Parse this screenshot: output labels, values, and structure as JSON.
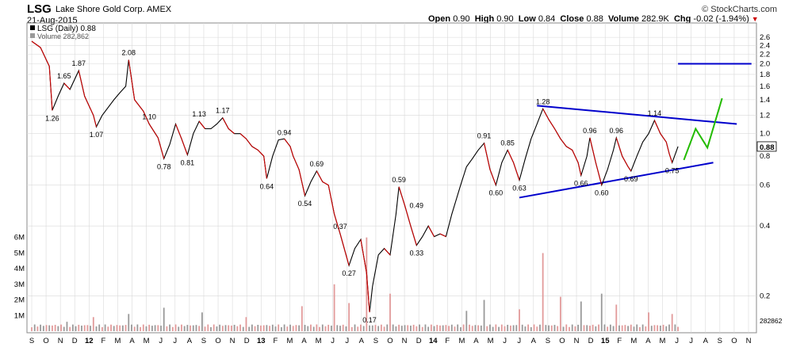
{
  "header": {
    "ticker": "LSG",
    "company": "Lake Shore Gold Corp.",
    "exchange": "AMEX",
    "date": "21-Aug-2015",
    "brand": "© StockCharts.com",
    "open_label": "Open",
    "open": "0.90",
    "high_label": "High",
    "high": "0.90",
    "low_label": "Low",
    "low": "0.84",
    "close_label": "Close",
    "close": "0.88",
    "volume_label": "Volume",
    "volume": "282.9K",
    "chg_label": "Chg",
    "chg": "-0.02 (-1.94%)"
  },
  "legend": {
    "price": "LSG (Daily) 0.88",
    "volume": "Volume 282,862"
  },
  "chart_data": {
    "type": "line",
    "y_scale": "log",
    "y_ticks": [
      2.6,
      2.4,
      2.2,
      2.0,
      1.8,
      1.6,
      1.4,
      1.2,
      1.0,
      0.8,
      0.6,
      0.4,
      0.2
    ],
    "y_tick_labels": [
      "2.6",
      "2.4",
      "2.2",
      "2.0",
      "1.8",
      "1.6",
      "1.4",
      "1.2",
      "1.0",
      "0.8",
      "0.6",
      "0.4",
      "0.2"
    ],
    "last_price": "0.88",
    "volume_ticks": [
      "6M",
      "5M",
      "4M",
      "3M",
      "2M",
      "1M"
    ],
    "volume_ticks_values": [
      6,
      5,
      4,
      3,
      2,
      1
    ],
    "volume_last": "282862",
    "x_labels": [
      "S",
      "O",
      "N",
      "D",
      "12",
      "F",
      "M",
      "A",
      "M",
      "J",
      "J",
      "A",
      "S",
      "O",
      "N",
      "D",
      "13",
      "F",
      "M",
      "A",
      "M",
      "J",
      "J",
      "A",
      "S",
      "O",
      "N",
      "D",
      "14",
      "F",
      "M",
      "A",
      "M",
      "J",
      "J",
      "A",
      "S",
      "O",
      "N",
      "D",
      "15",
      "F",
      "M",
      "A",
      "M",
      "J",
      "J",
      "A",
      "S",
      "O",
      "N"
    ],
    "price_points": [
      [
        0,
        2.5
      ],
      [
        3,
        2.35
      ],
      [
        6,
        1.95
      ],
      [
        7,
        1.26
      ],
      [
        9,
        1.45
      ],
      [
        11,
        1.65
      ],
      [
        13,
        1.55
      ],
      [
        16,
        1.87
      ],
      [
        18,
        1.45
      ],
      [
        21,
        1.2
      ],
      [
        22,
        1.07
      ],
      [
        24,
        1.2
      ],
      [
        28,
        1.4
      ],
      [
        30,
        1.5
      ],
      [
        32,
        1.6
      ],
      [
        33,
        2.08
      ],
      [
        35,
        1.4
      ],
      [
        38,
        1.25
      ],
      [
        40,
        1.1
      ],
      [
        43,
        0.96
      ],
      [
        45,
        0.78
      ],
      [
        47,
        0.9
      ],
      [
        49,
        1.1
      ],
      [
        51,
        0.95
      ],
      [
        53,
        0.81
      ],
      [
        55,
        1.0
      ],
      [
        57,
        1.13
      ],
      [
        59,
        1.05
      ],
      [
        61,
        1.05
      ],
      [
        63,
        1.1
      ],
      [
        65,
        1.17
      ],
      [
        67,
        1.05
      ],
      [
        69,
        1.0
      ],
      [
        71,
        1.0
      ],
      [
        73,
        0.95
      ],
      [
        75,
        0.88
      ],
      [
        77,
        0.85
      ],
      [
        79,
        0.8
      ],
      [
        80,
        0.64
      ],
      [
        82,
        0.8
      ],
      [
        84,
        0.94
      ],
      [
        86,
        0.95
      ],
      [
        88,
        0.88
      ],
      [
        89,
        0.8
      ],
      [
        91,
        0.7
      ],
      [
        93,
        0.54
      ],
      [
        95,
        0.62
      ],
      [
        97,
        0.69
      ],
      [
        99,
        0.62
      ],
      [
        101,
        0.6
      ],
      [
        103,
        0.45
      ],
      [
        105,
        0.37
      ],
      [
        107,
        0.3
      ],
      [
        108,
        0.27
      ],
      [
        110,
        0.32
      ],
      [
        112,
        0.35
      ],
      [
        114,
        0.25
      ],
      [
        115,
        0.17
      ],
      [
        116,
        0.22
      ],
      [
        118,
        0.3
      ],
      [
        120,
        0.32
      ],
      [
        122,
        0.3
      ],
      [
        124,
        0.45
      ],
      [
        125,
        0.59
      ],
      [
        127,
        0.49
      ],
      [
        129,
        0.4
      ],
      [
        131,
        0.33
      ],
      [
        133,
        0.36
      ],
      [
        135,
        0.4
      ],
      [
        137,
        0.36
      ],
      [
        139,
        0.37
      ],
      [
        141,
        0.36
      ],
      [
        143,
        0.45
      ],
      [
        146,
        0.6
      ],
      [
        148,
        0.72
      ],
      [
        150,
        0.78
      ],
      [
        152,
        0.85
      ],
      [
        154,
        0.91
      ],
      [
        156,
        0.7
      ],
      [
        158,
        0.6
      ],
      [
        160,
        0.75
      ],
      [
        162,
        0.85
      ],
      [
        164,
        0.75
      ],
      [
        166,
        0.63
      ],
      [
        168,
        0.78
      ],
      [
        170,
        0.95
      ],
      [
        172,
        1.1
      ],
      [
        174,
        1.28
      ],
      [
        176,
        1.15
      ],
      [
        178,
        1.05
      ],
      [
        180,
        0.95
      ],
      [
        182,
        0.88
      ],
      [
        184,
        0.85
      ],
      [
        186,
        0.75
      ],
      [
        187,
        0.66
      ],
      [
        189,
        0.8
      ],
      [
        190,
        0.96
      ],
      [
        192,
        0.75
      ],
      [
        194,
        0.6
      ],
      [
        196,
        0.7
      ],
      [
        198,
        0.85
      ],
      [
        199,
        0.96
      ],
      [
        201,
        0.8
      ],
      [
        203,
        0.72
      ],
      [
        204,
        0.69
      ],
      [
        206,
        0.8
      ],
      [
        208,
        0.92
      ],
      [
        210,
        1.0
      ],
      [
        212,
        1.14
      ],
      [
        214,
        1.0
      ],
      [
        216,
        0.92
      ],
      [
        217,
        0.82
      ],
      [
        218,
        0.75
      ],
      [
        220,
        0.88
      ]
    ],
    "annotations": [
      {
        "x": 7,
        "y": 1.26,
        "label": "1.26",
        "pos": "below"
      },
      {
        "x": 11,
        "y": 1.65,
        "label": "1.65",
        "pos": "above"
      },
      {
        "x": 16,
        "y": 1.87,
        "label": "1.87",
        "pos": "above"
      },
      {
        "x": 22,
        "y": 1.07,
        "label": "1.07",
        "pos": "below"
      },
      {
        "x": 33,
        "y": 2.08,
        "label": "2.08",
        "pos": "above"
      },
      {
        "x": 40,
        "y": 1.1,
        "label": "1.10",
        "pos": "above"
      },
      {
        "x": 45,
        "y": 0.78,
        "label": "0.78",
        "pos": "below"
      },
      {
        "x": 53,
        "y": 0.81,
        "label": "0.81",
        "pos": "below"
      },
      {
        "x": 57,
        "y": 1.13,
        "label": "1.13",
        "pos": "above"
      },
      {
        "x": 65,
        "y": 1.17,
        "label": "1.17",
        "pos": "above"
      },
      {
        "x": 80,
        "y": 0.64,
        "label": "0.64",
        "pos": "below"
      },
      {
        "x": 86,
        "y": 0.94,
        "label": "0.94",
        "pos": "above"
      },
      {
        "x": 93,
        "y": 0.54,
        "label": "0.54",
        "pos": "below"
      },
      {
        "x": 97,
        "y": 0.69,
        "label": "0.69",
        "pos": "above"
      },
      {
        "x": 105,
        "y": 0.37,
        "label": "0.37",
        "pos": "above"
      },
      {
        "x": 108,
        "y": 0.27,
        "label": "0.27",
        "pos": "below"
      },
      {
        "x": 115,
        "y": 0.17,
        "label": "0.17",
        "pos": "below"
      },
      {
        "x": 125,
        "y": 0.59,
        "label": "0.59",
        "pos": "above"
      },
      {
        "x": 127,
        "y": 0.49,
        "label": "0.49",
        "pos": "right"
      },
      {
        "x": 131,
        "y": 0.33,
        "label": "0.33",
        "pos": "below"
      },
      {
        "x": 154,
        "y": 0.91,
        "label": "0.91",
        "pos": "above"
      },
      {
        "x": 158,
        "y": 0.6,
        "label": "0.60",
        "pos": "below"
      },
      {
        "x": 162,
        "y": 0.85,
        "label": "0.85",
        "pos": "above"
      },
      {
        "x": 166,
        "y": 0.63,
        "label": "0.63",
        "pos": "below"
      },
      {
        "x": 174,
        "y": 1.28,
        "label": "1.28",
        "pos": "above"
      },
      {
        "x": 187,
        "y": 0.66,
        "label": "0.66",
        "pos": "below"
      },
      {
        "x": 190,
        "y": 0.96,
        "label": "0.96",
        "pos": "above"
      },
      {
        "x": 194,
        "y": 0.6,
        "label": "0.60",
        "pos": "below"
      },
      {
        "x": 199,
        "y": 0.96,
        "label": "0.96",
        "pos": "above"
      },
      {
        "x": 204,
        "y": 0.69,
        "label": "0.69",
        "pos": "below"
      },
      {
        "x": 212,
        "y": 1.14,
        "label": "1.14",
        "pos": "above"
      },
      {
        "x": 218,
        "y": 0.75,
        "label": "0.75",
        "pos": "below"
      }
    ],
    "trendlines": [
      {
        "from": [
          172,
          1.32
        ],
        "to": [
          240,
          1.1
        ],
        "color": "#0000cc"
      },
      {
        "from": [
          166,
          0.53
        ],
        "to": [
          232,
          0.75
        ],
        "color": "#0000cc"
      },
      {
        "from": [
          220,
          2.0
        ],
        "to": [
          245,
          2.0
        ],
        "color": "#0000cc"
      }
    ],
    "projection": {
      "color": "#22bb00",
      "points": [
        [
          222,
          0.77
        ],
        [
          226,
          1.05
        ],
        [
          230,
          0.87
        ],
        [
          235,
          1.42
        ]
      ]
    },
    "volume_points": [
      [
        12,
        0.6
      ],
      [
        21,
        0.9
      ],
      [
        33,
        1.1
      ],
      [
        45,
        1.5
      ],
      [
        58,
        1.2
      ],
      [
        73,
        0.9
      ],
      [
        92,
        1.6
      ],
      [
        103,
        3.0
      ],
      [
        108,
        1.8
      ],
      [
        114,
        6.0
      ],
      [
        122,
        2.4
      ],
      [
        148,
        1.3
      ],
      [
        154,
        2.0
      ],
      [
        166,
        1.4
      ],
      [
        174,
        5.0
      ],
      [
        180,
        2.2
      ],
      [
        187,
        1.9
      ],
      [
        194,
        2.4
      ],
      [
        199,
        1.7
      ],
      [
        210,
        1.2
      ],
      [
        218,
        1.1
      ]
    ],
    "colors": {
      "up": "#000000",
      "down": "#cc0000",
      "volume_up": "#999999",
      "volume_down": "#e29a9a",
      "grid": "#d9d9d9"
    }
  }
}
